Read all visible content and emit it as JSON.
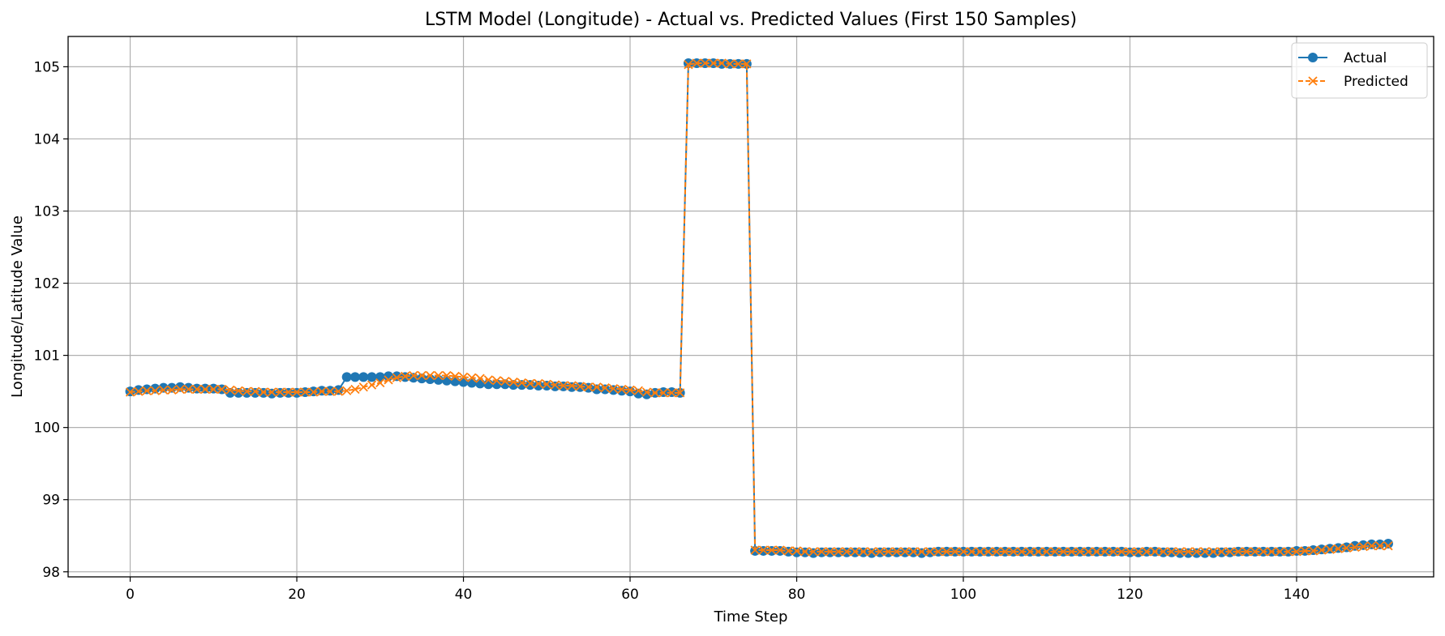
{
  "chart_data": {
    "type": "line",
    "title": "LSTM Model (Longitude) - Actual vs. Predicted Values (First 150 Samples)",
    "xlabel": "Time Step",
    "ylabel": "Longitude/Latitude Value",
    "xlim": [
      -7.45,
      156.45
    ],
    "ylim": [
      97.93,
      105.42
    ],
    "xticks": [
      0,
      20,
      40,
      60,
      80,
      100,
      120,
      140
    ],
    "yticks": [
      98,
      99,
      100,
      101,
      102,
      103,
      104,
      105
    ],
    "grid": true,
    "legend_position": "top-right",
    "series": [
      {
        "name": "Actual",
        "color": "#1f77b4",
        "marker": "circle",
        "linestyle": "solid",
        "values": [
          100.5,
          100.52,
          100.53,
          100.54,
          100.55,
          100.55,
          100.56,
          100.55,
          100.54,
          100.54,
          100.54,
          100.53,
          100.48,
          100.48,
          100.48,
          100.48,
          100.48,
          100.47,
          100.48,
          100.48,
          100.48,
          100.49,
          100.5,
          100.51,
          100.51,
          100.52,
          100.7,
          100.7,
          100.7,
          100.7,
          100.7,
          100.71,
          100.71,
          100.7,
          100.69,
          100.68,
          100.67,
          100.66,
          100.65,
          100.64,
          100.63,
          100.62,
          100.61,
          100.6,
          100.6,
          100.6,
          100.59,
          100.59,
          100.59,
          100.58,
          100.58,
          100.57,
          100.57,
          100.56,
          100.56,
          100.55,
          100.53,
          100.53,
          100.52,
          100.51,
          100.5,
          100.47,
          100.46,
          100.48,
          100.49,
          100.49,
          100.48,
          105.05,
          105.05,
          105.05,
          105.05,
          105.04,
          105.04,
          105.04,
          105.04,
          98.29,
          98.29,
          98.29,
          98.29,
          98.28,
          98.27,
          98.27,
          98.26,
          98.27,
          98.27,
          98.27,
          98.27,
          98.27,
          98.27,
          98.26,
          98.27,
          98.27,
          98.27,
          98.27,
          98.27,
          98.26,
          98.27,
          98.28,
          98.28,
          98.28,
          98.28,
          98.28,
          98.28,
          98.28,
          98.28,
          98.28,
          98.28,
          98.28,
          98.28,
          98.28,
          98.28,
          98.28,
          98.28,
          98.28,
          98.28,
          98.28,
          98.28,
          98.28,
          98.28,
          98.28,
          98.27,
          98.27,
          98.28,
          98.28,
          98.27,
          98.27,
          98.26,
          98.26,
          98.26,
          98.26,
          98.26,
          98.27,
          98.27,
          98.28,
          98.28,
          98.28,
          98.28,
          98.28,
          98.28,
          98.28,
          98.29,
          98.29,
          98.3,
          98.31,
          98.32,
          98.33,
          98.34,
          98.36,
          98.37,
          98.38,
          98.38,
          98.39
        ]
      },
      {
        "name": "Predicted",
        "color": "#ff7f0e",
        "marker": "x",
        "linestyle": "dashed",
        "values": [
          100.49,
          100.5,
          100.51,
          100.51,
          100.52,
          100.52,
          100.53,
          100.53,
          100.53,
          100.53,
          100.53,
          100.53,
          100.52,
          100.51,
          100.5,
          100.5,
          100.49,
          100.49,
          100.49,
          100.49,
          100.49,
          100.49,
          100.49,
          100.5,
          100.5,
          100.5,
          100.51,
          100.53,
          100.56,
          100.59,
          100.62,
          100.66,
          100.69,
          100.71,
          100.72,
          100.72,
          100.72,
          100.72,
          100.72,
          100.71,
          100.7,
          100.69,
          100.68,
          100.66,
          100.65,
          100.64,
          100.63,
          100.62,
          100.61,
          100.61,
          100.6,
          100.59,
          100.58,
          100.58,
          100.57,
          100.56,
          100.56,
          100.55,
          100.54,
          100.53,
          100.52,
          100.51,
          100.49,
          100.48,
          100.48,
          100.48,
          100.48,
          105.03,
          105.05,
          105.05,
          105.05,
          105.05,
          105.04,
          105.04,
          105.04,
          98.3,
          98.3,
          98.3,
          98.3,
          98.29,
          98.29,
          98.28,
          98.28,
          98.28,
          98.28,
          98.28,
          98.28,
          98.28,
          98.28,
          98.28,
          98.28,
          98.28,
          98.28,
          98.28,
          98.28,
          98.28,
          98.28,
          98.28,
          98.28,
          98.28,
          98.28,
          98.28,
          98.28,
          98.28,
          98.28,
          98.28,
          98.28,
          98.28,
          98.28,
          98.28,
          98.28,
          98.28,
          98.28,
          98.28,
          98.28,
          98.28,
          98.28,
          98.28,
          98.28,
          98.28,
          98.28,
          98.28,
          98.28,
          98.28,
          98.28,
          98.28,
          98.28,
          98.28,
          98.28,
          98.28,
          98.28,
          98.28,
          98.28,
          98.28,
          98.28,
          98.28,
          98.28,
          98.28,
          98.28,
          98.28,
          98.28,
          98.29,
          98.29,
          98.3,
          98.31,
          98.32,
          98.33,
          98.34,
          98.35,
          98.36,
          98.36,
          98.36
        ]
      }
    ]
  }
}
